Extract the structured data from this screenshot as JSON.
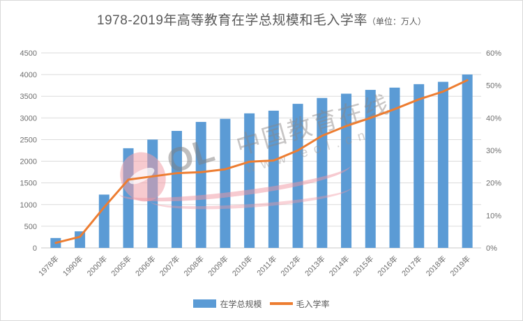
{
  "header": {
    "title_main": "1978-2019年高等教育在学总规模和毛入学率",
    "title_unit": "（单位：万人）"
  },
  "chart_data": {
    "type": "bar+line",
    "title": "1978-2019年高等教育在学总规模和毛入学率",
    "title_unit": "（单位：万人）",
    "categories": [
      "1978年",
      "1990年",
      "2000年",
      "2005年",
      "2006年",
      "2007年",
      "2008年",
      "2009年",
      "2010年",
      "2011年",
      "2012年",
      "2013年",
      "2014年",
      "2015年",
      "2016年",
      "2017年",
      "2018年",
      "2019年"
    ],
    "series": [
      {
        "name": "在学总规模",
        "type": "bar",
        "axis": "left",
        "unit": "万人",
        "color": "#5B9BD5",
        "values": [
          228,
          382,
          1230,
          2300,
          2500,
          2700,
          2907,
          2979,
          3105,
          3167,
          3325,
          3460,
          3559,
          3647,
          3699,
          3779,
          3833,
          4002
        ]
      },
      {
        "name": "毛入学率",
        "type": "line",
        "axis": "right",
        "unit": "%",
        "color": "#ED7D31",
        "values": [
          1.55,
          3.4,
          12.5,
          21,
          22,
          23,
          23.3,
          24.2,
          26.5,
          26.9,
          30,
          34.5,
          37.5,
          40,
          42.7,
          45.7,
          48.1,
          51.6
        ]
      }
    ],
    "left_axis": {
      "min": 0,
      "max": 4500,
      "step": 500,
      "tick_labels": [
        "0",
        "500",
        "1000",
        "1500",
        "2000",
        "2500",
        "3000",
        "3500",
        "4000",
        "4500"
      ]
    },
    "right_axis": {
      "min": 0,
      "max": 60,
      "step": 10,
      "tick_labels": [
        "0%",
        "10%",
        "20%",
        "30%",
        "40%",
        "50%",
        "60%"
      ]
    },
    "grid": true,
    "legend_position": "bottom"
  },
  "watermark": {
    "brand_text": "中国教育在线",
    "url_text": "www.eol.cn",
    "logo_ol": "OL"
  },
  "colors": {
    "bar": "#5B9BD5",
    "line": "#ED7D31",
    "grid": "#DBDBDB",
    "axis_line": "#C9C9C9",
    "tick_label": "#6E6E6E",
    "title": "#595959",
    "legend_text": "#595959",
    "background": "#FFFFFF",
    "border": "#D9D9D9",
    "watermark_gray": "#8A8686",
    "watermark_pink": "#F09EA8"
  }
}
